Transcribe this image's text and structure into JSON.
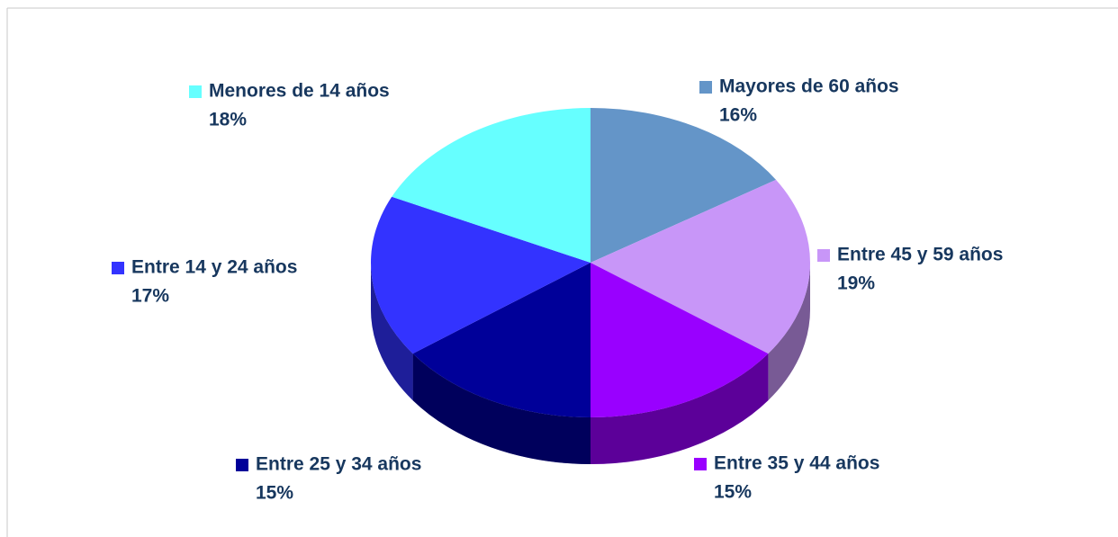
{
  "chart_data": {
    "type": "pie",
    "categories": [
      "Mayores de 60 años",
      "Entre 45 y 59 años",
      "Entre 35 y 44 años",
      "Entre 25 y 34 años",
      "Entre 14 y 24 años",
      "Menores de 14 años"
    ],
    "values": [
      16,
      19,
      15,
      15,
      17,
      18
    ],
    "value_labels": [
      "16%",
      "19%",
      "15%",
      "15%",
      "17%",
      "18%"
    ],
    "colors": [
      "#6495c8",
      "#c896f8",
      "#9900ff",
      "#000099",
      "#3333ff",
      "#66ffff"
    ]
  }
}
